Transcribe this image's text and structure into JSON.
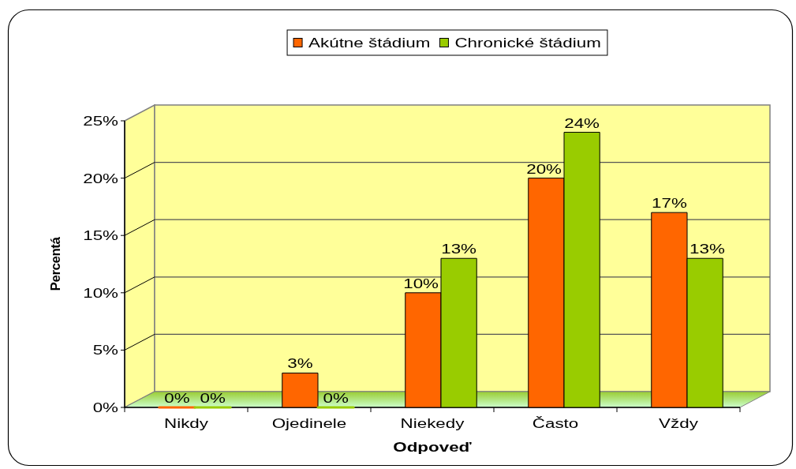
{
  "chart_data": {
    "type": "bar",
    "xlabel": "Odpoveď",
    "ylabel": "Percentá",
    "categories": [
      "Nikdy",
      "Ojedinele",
      "Niekedy",
      "Často",
      "Vždy"
    ],
    "series": [
      {
        "name": "Akútne štádium",
        "color": "#ff6600",
        "values": [
          0,
          3,
          10,
          20,
          17
        ],
        "value_labels": [
          "0%",
          "3%",
          "10%",
          "20%",
          "17%"
        ]
      },
      {
        "name": "Chronické štádium",
        "color": "#99cc00",
        "values": [
          0,
          0,
          13,
          24,
          13
        ],
        "value_labels": [
          "0%",
          "0%",
          "13%",
          "24%",
          "13%"
        ]
      }
    ],
    "ylim": [
      0,
      25
    ],
    "yticks": [
      {
        "value": 0,
        "label": "0%"
      },
      {
        "value": 5,
        "label": "5%"
      },
      {
        "value": 10,
        "label": "10%"
      },
      {
        "value": 15,
        "label": "15%"
      },
      {
        "value": 20,
        "label": "20%"
      },
      {
        "value": 25,
        "label": "25%"
      }
    ],
    "grid": "y",
    "legend": "top"
  }
}
